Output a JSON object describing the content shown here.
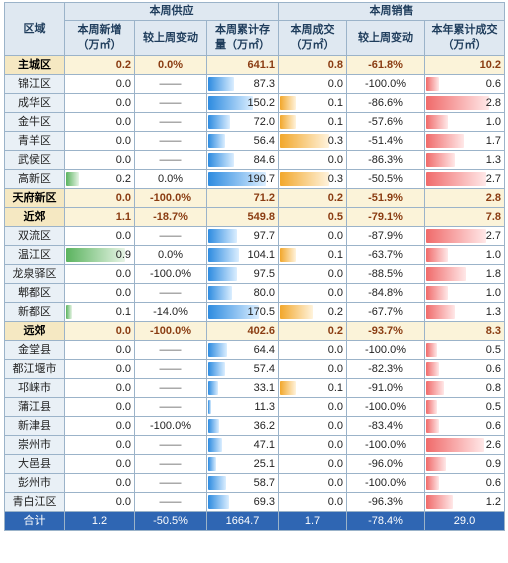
{
  "header": {
    "region": "区域",
    "supply_group": "本周供应",
    "sales_group": "本周销售",
    "columns": [
      "本周新增（万㎡）",
      "较上周变动",
      "本周累计存量（万㎡）",
      "本周成交（万㎡）",
      "较上周变动",
      "本年累计成交（万㎡）"
    ]
  },
  "rows": [
    {
      "name": "主城区",
      "bold": true,
      "new": "0.2",
      "new_chg": "0.0%",
      "stock": "641.1",
      "deal": "0.8",
      "deal_chg": "-61.8%",
      "ytd": "10.2"
    },
    {
      "name": "锦江区",
      "new": "0.0",
      "new_chg": "——",
      "stock": "87.3",
      "deal": "0.0",
      "deal_chg": "-100.0%",
      "ytd": "0.6"
    },
    {
      "name": "成华区",
      "new": "0.0",
      "new_chg": "——",
      "stock": "150.2",
      "deal": "0.1",
      "deal_chg": "-86.6%",
      "ytd": "2.8"
    },
    {
      "name": "金牛区",
      "new": "0.0",
      "new_chg": "——",
      "stock": "72.0",
      "deal": "0.1",
      "deal_chg": "-57.6%",
      "ytd": "1.0"
    },
    {
      "name": "青羊区",
      "new": "0.0",
      "new_chg": "——",
      "stock": "56.4",
      "deal": "0.3",
      "deal_chg": "-51.4%",
      "ytd": "1.7"
    },
    {
      "name": "武侯区",
      "new": "0.0",
      "new_chg": "——",
      "stock": "84.6",
      "deal": "0.0",
      "deal_chg": "-86.3%",
      "ytd": "1.3"
    },
    {
      "name": "高新区",
      "new": "0.2",
      "new_chg": "0.0%",
      "stock": "190.7",
      "deal": "0.3",
      "deal_chg": "-50.5%",
      "ytd": "2.7"
    },
    {
      "name": "天府新区",
      "bold": true,
      "new": "0.0",
      "new_chg": "-100.0%",
      "stock": "71.2",
      "deal": "0.2",
      "deal_chg": "-51.9%",
      "ytd": "2.8"
    },
    {
      "name": "近郊",
      "bold": true,
      "new": "1.1",
      "new_chg": "-18.7%",
      "stock": "549.8",
      "deal": "0.5",
      "deal_chg": "-79.1%",
      "ytd": "7.8"
    },
    {
      "name": "双流区",
      "new": "0.0",
      "new_chg": "——",
      "stock": "97.7",
      "deal": "0.0",
      "deal_chg": "-87.9%",
      "ytd": "2.7"
    },
    {
      "name": "温江区",
      "new": "0.9",
      "new_chg": "0.0%",
      "stock": "104.1",
      "deal": "0.1",
      "deal_chg": "-63.7%",
      "ytd": "1.0"
    },
    {
      "name": "龙泉驿区",
      "new": "0.0",
      "new_chg": "-100.0%",
      "stock": "97.5",
      "deal": "0.0",
      "deal_chg": "-88.5%",
      "ytd": "1.8"
    },
    {
      "name": "郫都区",
      "new": "0.0",
      "new_chg": "——",
      "stock": "80.0",
      "deal": "0.0",
      "deal_chg": "-84.8%",
      "ytd": "1.0"
    },
    {
      "name": "新都区",
      "new": "0.1",
      "new_chg": "-14.0%",
      "stock": "170.5",
      "deal": "0.2",
      "deal_chg": "-67.7%",
      "ytd": "1.3"
    },
    {
      "name": "远郊",
      "bold": true,
      "new": "0.0",
      "new_chg": "-100.0%",
      "stock": "402.6",
      "deal": "0.2",
      "deal_chg": "-93.7%",
      "ytd": "8.3"
    },
    {
      "name": "金堂县",
      "new": "0.0",
      "new_chg": "——",
      "stock": "64.4",
      "deal": "0.0",
      "deal_chg": "-100.0%",
      "ytd": "0.5"
    },
    {
      "name": "都江堰市",
      "new": "0.0",
      "new_chg": "——",
      "stock": "57.4",
      "deal": "0.0",
      "deal_chg": "-82.3%",
      "ytd": "0.6"
    },
    {
      "name": "邛崃市",
      "new": "0.0",
      "new_chg": "——",
      "stock": "33.1",
      "deal": "0.1",
      "deal_chg": "-91.0%",
      "ytd": "0.8"
    },
    {
      "name": "蒲江县",
      "new": "0.0",
      "new_chg": "——",
      "stock": "11.3",
      "deal": "0.0",
      "deal_chg": "-100.0%",
      "ytd": "0.5"
    },
    {
      "name": "新津县",
      "new": "0.0",
      "new_chg": "-100.0%",
      "stock": "36.2",
      "deal": "0.0",
      "deal_chg": "-83.4%",
      "ytd": "0.6"
    },
    {
      "name": "崇州市",
      "new": "0.0",
      "new_chg": "——",
      "stock": "47.1",
      "deal": "0.0",
      "deal_chg": "-100.0%",
      "ytd": "2.6"
    },
    {
      "name": "大邑县",
      "new": "0.0",
      "new_chg": "——",
      "stock": "25.1",
      "deal": "0.0",
      "deal_chg": "-96.0%",
      "ytd": "0.9"
    },
    {
      "name": "彭州市",
      "new": "0.0",
      "new_chg": "——",
      "stock": "58.7",
      "deal": "0.0",
      "deal_chg": "-100.0%",
      "ytd": "0.6"
    },
    {
      "name": "青白江区",
      "new": "0.0",
      "new_chg": "——",
      "stock": "69.3",
      "deal": "0.0",
      "deal_chg": "-96.3%",
      "ytd": "1.2"
    }
  ],
  "total": {
    "name": "合计",
    "new": "1.2",
    "new_chg": "-50.5%",
    "stock": "1664.7",
    "deal": "1.7",
    "deal_chg": "-78.4%",
    "ytd": "29.0"
  },
  "colors": {
    "new_bar": "#5ab35e",
    "stock_bar": "#2d8be0",
    "deal_bar": "#f2a72b",
    "ytd_bar": "#f06a6a",
    "total_row": "#2f66b3"
  }
}
